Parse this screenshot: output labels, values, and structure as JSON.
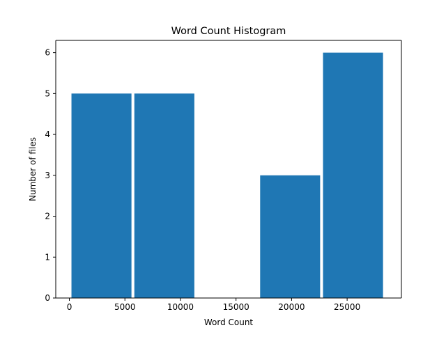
{
  "chart_data": {
    "type": "bar",
    "title": "Word Count Histogram",
    "xlabel": "Word Count",
    "ylabel": "Number of files",
    "xlim": [
      -1224,
      29884
    ],
    "ylim": [
      0,
      6.3
    ],
    "xticks": [
      0,
      5000,
      10000,
      15000,
      20000,
      25000
    ],
    "yticks": [
      0,
      1,
      2,
      3,
      4,
      5,
      6
    ],
    "bins": [
      {
        "start": 190,
        "end": 5590,
        "count": 5
      },
      {
        "start": 5850,
        "end": 11250,
        "count": 5
      },
      {
        "start": 11510,
        "end": 16910,
        "count": 0
      },
      {
        "start": 17170,
        "end": 22570,
        "count": 3
      },
      {
        "start": 22830,
        "end": 28230,
        "count": 6
      }
    ],
    "bar_color": "#1f77b4",
    "grid": false,
    "legend": "none"
  }
}
